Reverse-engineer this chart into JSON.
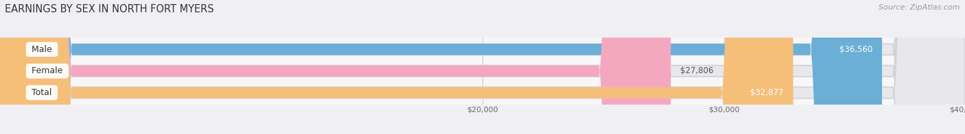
{
  "title": "EARNINGS BY SEX IN NORTH FORT MYERS",
  "source": "Source: ZipAtlas.com",
  "categories": [
    "Male",
    "Female",
    "Total"
  ],
  "values": [
    36560,
    27806,
    32877
  ],
  "xmin": 20000,
  "xmax": 40000,
  "xticks": [
    20000,
    30000,
    40000
  ],
  "xtick_labels": [
    "$20,000",
    "$30,000",
    "$40,000"
  ],
  "bar_colors": [
    "#6baed6",
    "#f4a8c0",
    "#f5bf7a"
  ],
  "bar_bg_color": "#e8e8ec",
  "label_colors_inside": [
    "#ffffff",
    "#555555",
    "#ffffff"
  ],
  "label_inside": [
    true,
    false,
    true
  ],
  "bar_height": 0.52,
  "title_fontsize": 10.5,
  "source_fontsize": 8,
  "value_fontsize": 8.5,
  "category_fontsize": 9,
  "background_color": "#f0f0f4",
  "bar_area_bg": "#f7f7f9"
}
